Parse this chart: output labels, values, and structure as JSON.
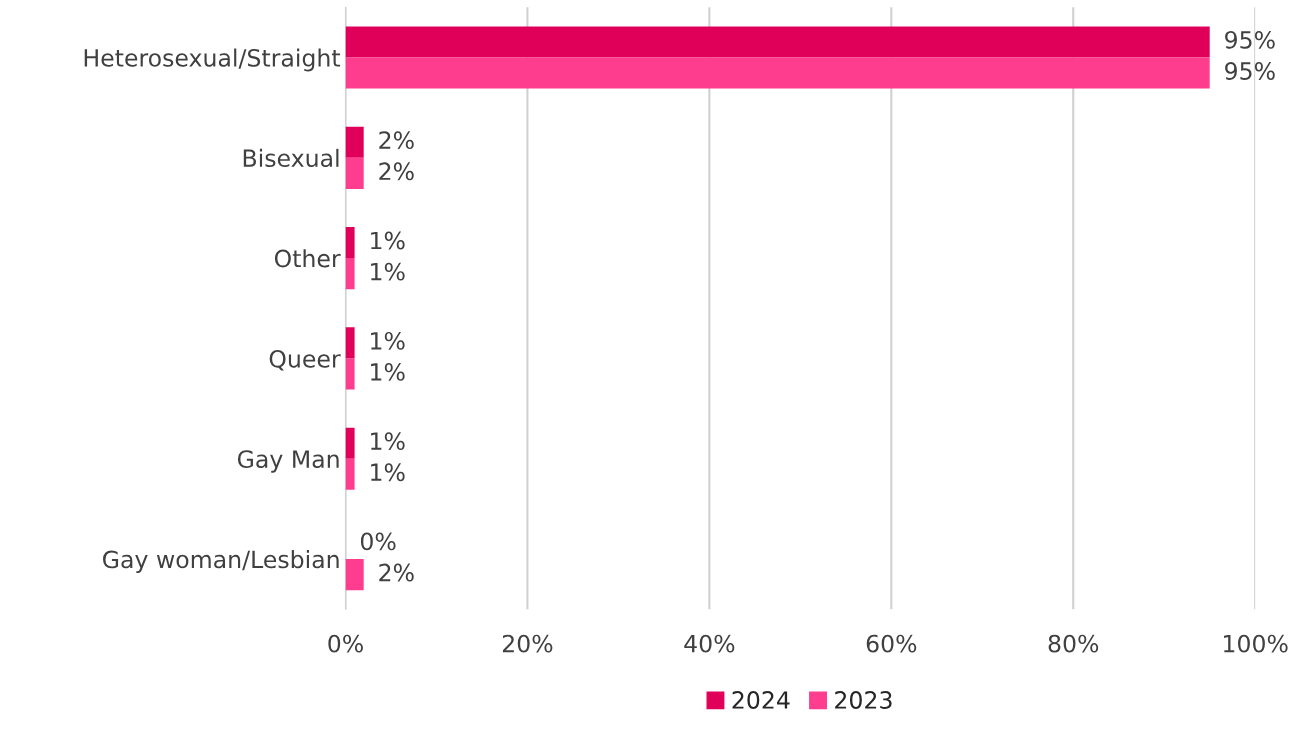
{
  "chart_data": {
    "type": "bar",
    "orientation": "horizontal",
    "categories": [
      "Heterosexual/Straight",
      "Bisexual",
      "Other",
      "Queer",
      "Gay Man",
      "Gay woman/Lesbian"
    ],
    "series": [
      {
        "name": "2024",
        "color": "#e0005a",
        "values": [
          95,
          2,
          1,
          1,
          1,
          0
        ],
        "value_labels": [
          "95%",
          "2%",
          "1%",
          "1%",
          "1%",
          "0%"
        ]
      },
      {
        "name": "2023",
        "color": "#ff3d8e",
        "values": [
          95,
          2,
          1,
          1,
          1,
          2
        ],
        "value_labels": [
          "95%",
          "2%",
          "1%",
          "1%",
          "1%",
          "2%"
        ]
      }
    ],
    "xlim": [
      0,
      100
    ],
    "xticks": [
      {
        "value": 0,
        "label": "0%"
      },
      {
        "value": 20,
        "label": "20%"
      },
      {
        "value": 40,
        "label": "40%"
      },
      {
        "value": 60,
        "label": "60%"
      },
      {
        "value": 80,
        "label": "80%"
      },
      {
        "value": 100,
        "label": "100%"
      }
    ],
    "grid": "x",
    "legend": "bottom"
  }
}
